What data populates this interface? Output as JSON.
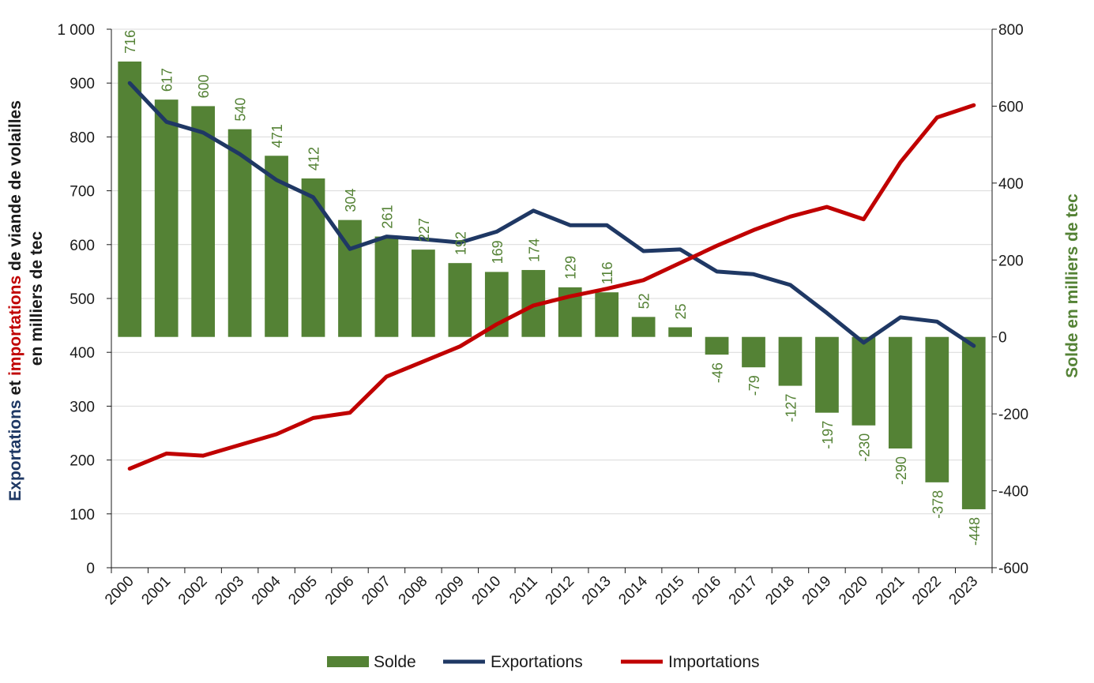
{
  "chart_data": {
    "type": "bar+line",
    "categories": [
      "2000",
      "2001",
      "2002",
      "2003",
      "2004",
      "2005",
      "2006",
      "2007",
      "2008",
      "2009",
      "2010",
      "2011",
      "2012",
      "2013",
      "2014",
      "2015",
      "2016",
      "2017",
      "2018",
      "2019",
      "2020",
      "2021",
      "2022",
      "2023"
    ],
    "series": [
      {
        "name": "Solde",
        "type": "bar",
        "axis": "right",
        "values": [
          716,
          617,
          600,
          540,
          471,
          412,
          304,
          261,
          227,
          192,
          169,
          174,
          129,
          116,
          52,
          25,
          -46,
          -79,
          -127,
          -197,
          -230,
          -290,
          -378,
          -448
        ],
        "labels": [
          "716",
          "617",
          "600",
          "540",
          "471",
          "412",
          "304",
          "261",
          "227",
          "192",
          "169",
          "174",
          "129",
          "116",
          "52",
          "25",
          "-46",
          "-79",
          "-127",
          "-197",
          "-230",
          "-290",
          "-378",
          "-448"
        ]
      },
      {
        "name": "Exportations",
        "type": "line",
        "axis": "left",
        "values": [
          900,
          828,
          808,
          768,
          720,
          688,
          592,
          615,
          610,
          604,
          624,
          663,
          636,
          636,
          588,
          591,
          550,
          545,
          525,
          473,
          418,
          465,
          457,
          412
        ]
      },
      {
        "name": "Importations",
        "type": "line",
        "axis": "left",
        "values": [
          184,
          212,
          208,
          228,
          248,
          278,
          288,
          355,
          383,
          411,
          452,
          487,
          504,
          518,
          534,
          566,
          598,
          627,
          652,
          670,
          647,
          753,
          836,
          859
        ]
      }
    ],
    "left_axis": {
      "min": 0,
      "max": 1000,
      "step": 100,
      "tick_labels": [
        "0",
        "100",
        "200",
        "300",
        "400",
        "500",
        "600",
        "700",
        "800",
        "900",
        "1 000"
      ],
      "title_line1_parts": [
        {
          "text": "Exportations",
          "color": "#1f3864"
        },
        {
          "text": " et ",
          "color": "#1a1a1a"
        },
        {
          "text": "importations",
          "color": "#c00000"
        },
        {
          "text": " de viande de volailles",
          "color": "#1a1a1a"
        }
      ],
      "title_line2": "en milliers de tec"
    },
    "right_axis": {
      "min": -600,
      "max": 800,
      "step": 200,
      "tick_labels": [
        "-600",
        "-400",
        "-200",
        "0",
        "200",
        "400",
        "600",
        "800"
      ],
      "title": "Solde en milliers de tec"
    },
    "legend": {
      "position": "bottom",
      "items": [
        "Solde",
        "Exportations",
        "Importations"
      ]
    },
    "colors": {
      "bar": "#548235",
      "exports": "#1f3864",
      "imports": "#c00000",
      "grid": "#d9d9d9",
      "axis": "#1a1a1a"
    }
  }
}
